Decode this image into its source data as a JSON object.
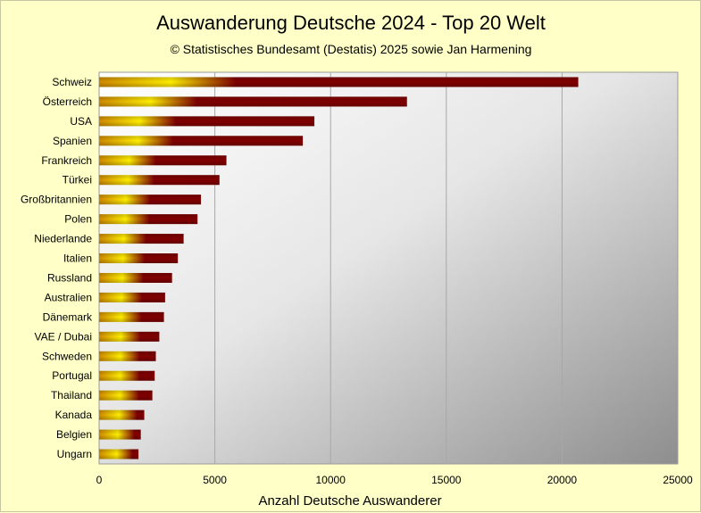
{
  "chart_data": {
    "type": "bar",
    "orientation": "horizontal",
    "title": "Auswanderung Deutsche 2024 - Top 20 Welt",
    "subtitle": "© Statistisches Bundesamt (Destatis) 2025 sowie Jan Harmening",
    "xlabel": "Anzahl Deutsche Auswanderer",
    "ylabel": "",
    "xlim": [
      0,
      25000
    ],
    "xticks": [
      0,
      5000,
      10000,
      15000,
      20000,
      25000
    ],
    "grid": true,
    "categories": [
      "Schweiz",
      "Österreich",
      "USA",
      "Spanien",
      "Frankreich",
      "Türkei",
      "Großbritannien",
      "Polen",
      "Niederlande",
      "Italien",
      "Russland",
      "Australien",
      "Dänemark",
      "VAE / Dubai",
      "Schweden",
      "Portugal",
      "Thailand",
      "Kanada",
      "Belgien",
      "Ungarn"
    ],
    "values": [
      20700,
      13300,
      9300,
      8800,
      5500,
      5200,
      4400,
      4250,
      3650,
      3400,
      3150,
      2850,
      2800,
      2600,
      2450,
      2400,
      2300,
      1950,
      1800,
      1700
    ],
    "colors": {
      "bar_light": "#ffee00",
      "bar_mid": "#d08a00",
      "bar_dark": "#800000",
      "plot_light": "#ffffff",
      "plot_dark": "#8e8e8e",
      "background": "#ffffc8"
    }
  }
}
